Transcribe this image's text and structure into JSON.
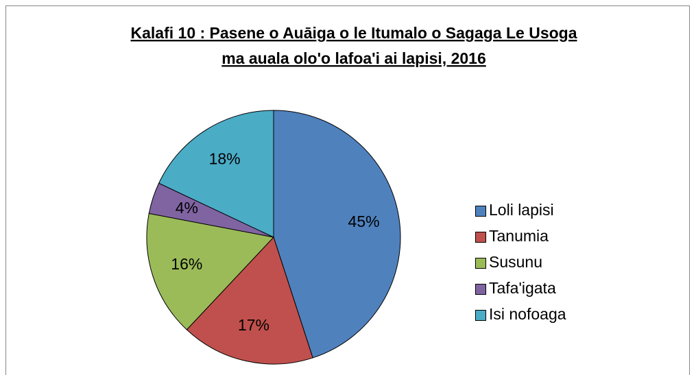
{
  "chart_data": {
    "type": "pie",
    "title": [
      "Kalafi 10 : Pasene o Auāiga o le Itumalo o Sagaga Le Usoga",
      "ma auala olo'o lafoa'i ai lapisi, 2016"
    ],
    "categories": [
      "Loli lapisi",
      "Tanumia",
      "Susunu",
      "Tafa'igata",
      "Isi nofoaga"
    ],
    "values": [
      45,
      17,
      16,
      4,
      18
    ],
    "value_labels": [
      "45%",
      "17%",
      "16%",
      "4%",
      "18%"
    ],
    "colors": [
      "#4f81bd",
      "#c0504d",
      "#9bbb59",
      "#8064a2",
      "#4bacc6"
    ],
    "legend": "right"
  }
}
